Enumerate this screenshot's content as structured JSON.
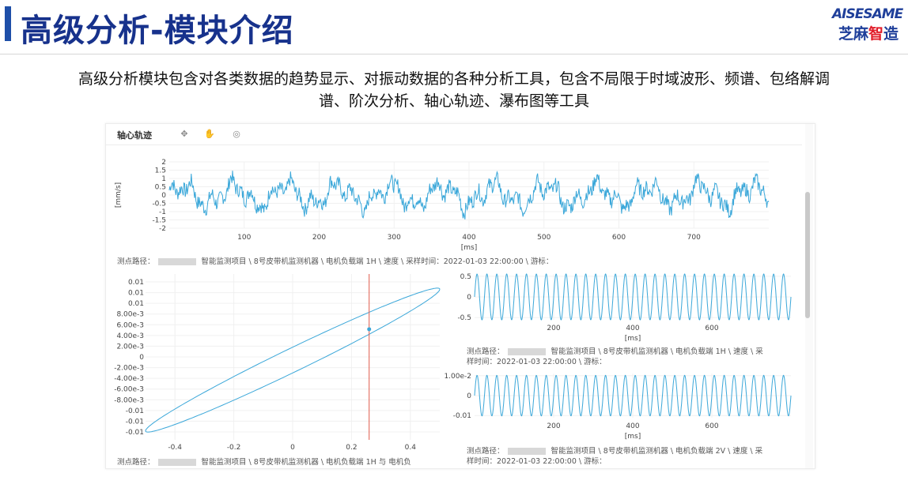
{
  "header": {
    "title": "高级分析-模块介绍",
    "logo_en": "AISESAME",
    "logo_cn_a": "芝麻",
    "logo_cn_b": "智",
    "logo_cn_c": "造",
    "brand_color": "#17328c",
    "logo_accent": "#e11d2a"
  },
  "description": {
    "line1": "高级分析模块包含对各类数据的趋势显示、对振动数据的各种分析工具，包含不局限于时域波形、频谱、包络解调",
    "line2": "谱、阶次分析、轴心轨迹、瀑布图等工具"
  },
  "app": {
    "toolbar_title": "轴心轨迹",
    "toolbar_icons": [
      "move-icon",
      "hand-icon",
      "camera-icon"
    ]
  },
  "chart_data": [
    {
      "type": "line",
      "id": "waveform",
      "xlabel": "[ms]",
      "ylabel": "[mm/s]",
      "xlim": [
        0,
        800
      ],
      "ylim": [
        -2,
        2
      ],
      "xticks": [
        100,
        200,
        300,
        400,
        500,
        600,
        700
      ],
      "yticks": [
        2,
        1.5,
        1,
        0.5,
        0,
        -0.5,
        -1,
        -1.5,
        -2
      ],
      "color": "#3aa7d9",
      "info": "测点路径：[redacted] 智能监测项目 \\ 8号皮带机监测机器 \\ 电机负载端 1H \\ 速度 \\ 采样时间：2022-01-03 22:00:00 \\ 游标："
    },
    {
      "type": "scatter",
      "id": "orbit",
      "xlim": [
        -0.5,
        0.5
      ],
      "ylim": [
        -0.01,
        0.01
      ],
      "xticks": [
        -0.4,
        -0.2,
        0,
        0.2,
        0.4
      ],
      "yticks": [
        "0.01",
        "0.01",
        "0.01",
        "8.00e-3",
        "6.00e-3",
        "4.00e-3",
        "2.00e-3",
        "0",
        "-2.00e-3",
        "-4.00e-3",
        "-6.00e-3",
        "-8.00e-3",
        "-0.01",
        "-0.01",
        "-0.01"
      ],
      "cursor_x": 0.26,
      "cursor_point": [
        0.26,
        0.0042
      ],
      "color": "#3aa7d9",
      "cursor_color": "#e05a4a",
      "info": "测点路径：[redacted] 智能监测项目 \\ 8号皮带机监测机器 \\ 电机负载端 1H 与 电机负"
    },
    {
      "type": "line",
      "id": "sine-1h",
      "xlabel": "[ms]",
      "xlim": [
        0,
        800
      ],
      "ylim": [
        -0.5,
        0.5
      ],
      "xticks": [
        200,
        400,
        600
      ],
      "yticks": [
        "0.5",
        "0",
        "-0.5"
      ],
      "amplitude": 0.5,
      "cycles": 32,
      "color": "#3aa7d9",
      "info_line1": "测点路径：[redacted] 智能监测项目 \\ 8号皮带机监测机器 \\ 电机负载端 1H \\ 速度 \\ 采",
      "info_line2": "样时间：2022-01-03 22:00:00 \\ 游标："
    },
    {
      "type": "line",
      "id": "sine-2v",
      "xlabel": "[ms]",
      "xlim": [
        0,
        800
      ],
      "ylim": [
        -0.012,
        0.012
      ],
      "xticks": [
        200,
        400,
        600
      ],
      "yticks": [
        "1.00e-2",
        "0",
        "-0.01"
      ],
      "amplitude": 0.011,
      "cycles": 32,
      "color": "#3aa7d9",
      "info_line1": "测点路径：[redacted] 智能监测项目 \\ 8号皮带机监测机器 \\ 电机负载端 2V \\ 速度 \\ 采",
      "info_line2": "样时间：2022-01-03 22:00:00 \\ 游标："
    }
  ]
}
